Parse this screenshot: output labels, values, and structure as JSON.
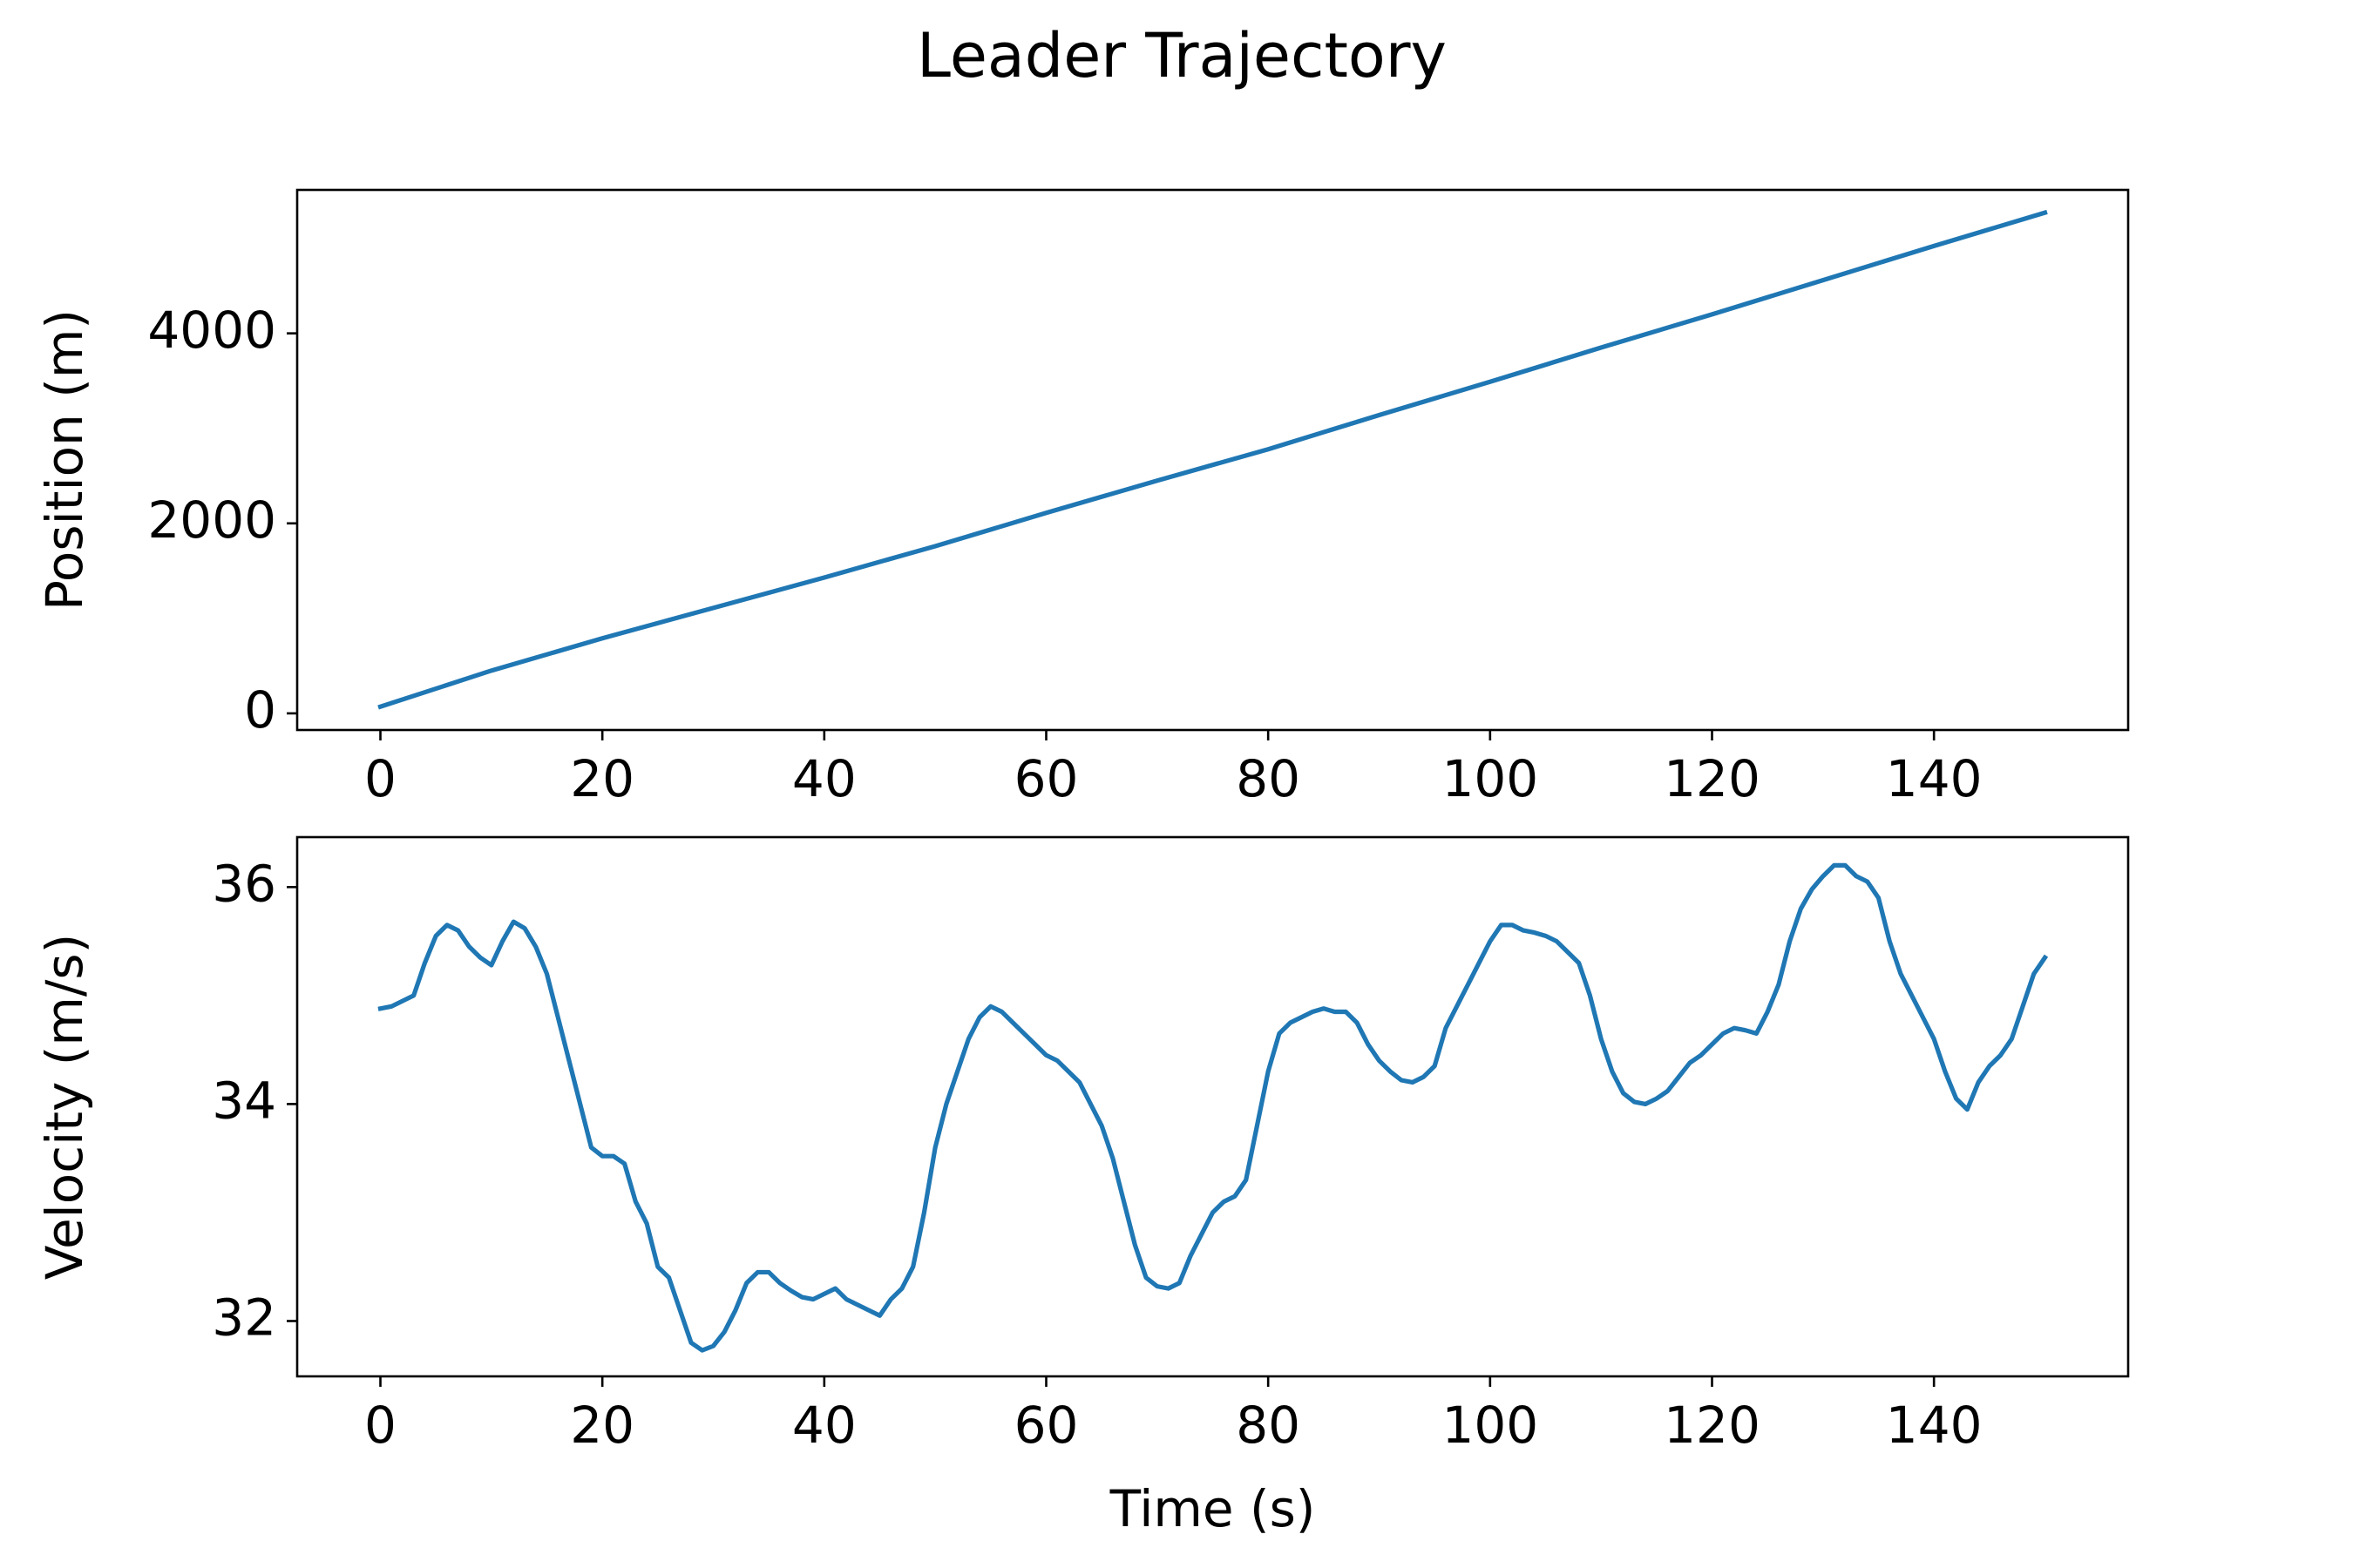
{
  "title": "Leader Trajectory",
  "chart_data": [
    {
      "type": "line",
      "ylabel": "Position (m)",
      "x": [
        0,
        10,
        20,
        30,
        40,
        50,
        60,
        70,
        80,
        90,
        100,
        110,
        120,
        130,
        140,
        150
      ],
      "series": [
        {
          "color": "#1f77b4",
          "values": [
            70,
            450,
            790,
            1110,
            1430,
            1760,
            2110,
            2450,
            2780,
            3140,
            3490,
            3850,
            4200,
            4560,
            4920,
            5270
          ]
        }
      ],
      "xlim": [
        -7.5,
        157.5
      ],
      "xticks": [
        0,
        20,
        40,
        60,
        80,
        100,
        120,
        140
      ],
      "ylim": [
        -175,
        5510
      ],
      "yticks": [
        0,
        2000,
        4000
      ]
    },
    {
      "type": "line",
      "ylabel": "Velocity (m/s)",
      "xlabel": "Time (s)",
      "x": [
        0,
        1,
        2,
        3,
        4,
        5,
        6,
        7,
        8,
        9,
        10,
        11,
        12,
        13,
        14,
        15,
        16,
        17,
        18,
        19,
        20,
        21,
        22,
        23,
        24,
        25,
        26,
        27,
        28,
        29,
        30,
        31,
        32,
        33,
        34,
        35,
        36,
        37,
        38,
        39,
        40,
        41,
        42,
        43,
        44,
        45,
        46,
        47,
        48,
        49,
        50,
        51,
        52,
        53,
        54,
        55,
        56,
        57,
        58,
        59,
        60,
        61,
        62,
        63,
        64,
        65,
        66,
        67,
        68,
        69,
        70,
        71,
        72,
        73,
        74,
        75,
        76,
        77,
        78,
        79,
        80,
        81,
        82,
        83,
        84,
        85,
        86,
        87,
        88,
        89,
        90,
        91,
        92,
        93,
        94,
        95,
        96,
        97,
        98,
        99,
        100,
        101,
        102,
        103,
        104,
        105,
        106,
        107,
        108,
        109,
        110,
        111,
        112,
        113,
        114,
        115,
        116,
        117,
        118,
        119,
        120,
        121,
        122,
        123,
        124,
        125,
        126,
        127,
        128,
        129,
        130,
        131,
        132,
        133,
        134,
        135,
        136,
        137,
        138,
        139,
        140,
        141,
        142,
        143,
        144,
        145,
        146,
        147,
        148,
        149,
        150
      ],
      "series": [
        {
          "color": "#1f77b4",
          "values": [
            34.88,
            34.9,
            34.95,
            35.0,
            35.3,
            35.55,
            35.65,
            35.6,
            35.45,
            35.35,
            35.28,
            35.5,
            35.68,
            35.62,
            35.45,
            35.2,
            34.8,
            34.4,
            34.0,
            33.6,
            33.52,
            33.52,
            33.45,
            33.1,
            32.9,
            32.5,
            32.4,
            32.1,
            31.8,
            31.73,
            31.77,
            31.9,
            32.1,
            32.35,
            32.45,
            32.45,
            32.35,
            32.28,
            32.22,
            32.2,
            32.25,
            32.3,
            32.2,
            32.15,
            32.1,
            32.05,
            32.2,
            32.3,
            32.5,
            33.0,
            33.6,
            34.0,
            34.3,
            34.6,
            34.8,
            34.9,
            34.85,
            34.75,
            34.65,
            34.55,
            34.45,
            34.4,
            34.3,
            34.2,
            34.0,
            33.8,
            33.5,
            33.1,
            32.7,
            32.4,
            32.32,
            32.3,
            32.35,
            32.6,
            32.8,
            33.0,
            33.1,
            33.15,
            33.3,
            33.8,
            34.3,
            34.65,
            34.75,
            34.8,
            34.85,
            34.88,
            34.85,
            34.85,
            34.75,
            34.55,
            34.4,
            34.3,
            34.22,
            34.2,
            34.25,
            34.35,
            34.7,
            34.9,
            35.1,
            35.3,
            35.5,
            35.65,
            35.65,
            35.6,
            35.58,
            35.55,
            35.5,
            35.4,
            35.3,
            35.0,
            34.6,
            34.3,
            34.1,
            34.02,
            34.0,
            34.05,
            34.12,
            34.25,
            34.38,
            34.45,
            34.55,
            34.65,
            34.7,
            34.68,
            34.65,
            34.85,
            35.1,
            35.5,
            35.8,
            35.98,
            36.1,
            36.2,
            36.2,
            36.1,
            36.05,
            35.9,
            35.5,
            35.2,
            35.0,
            34.8,
            34.6,
            34.3,
            34.05,
            33.95,
            34.2,
            34.35,
            34.45,
            34.6,
            34.9,
            35.2,
            35.35
          ]
        }
      ],
      "xlim": [
        -7.5,
        157.5
      ],
      "xticks": [
        0,
        20,
        40,
        60,
        80,
        100,
        120,
        140
      ],
      "ylim": [
        31.49,
        36.46
      ],
      "yticks": [
        32,
        34,
        36
      ]
    }
  ]
}
